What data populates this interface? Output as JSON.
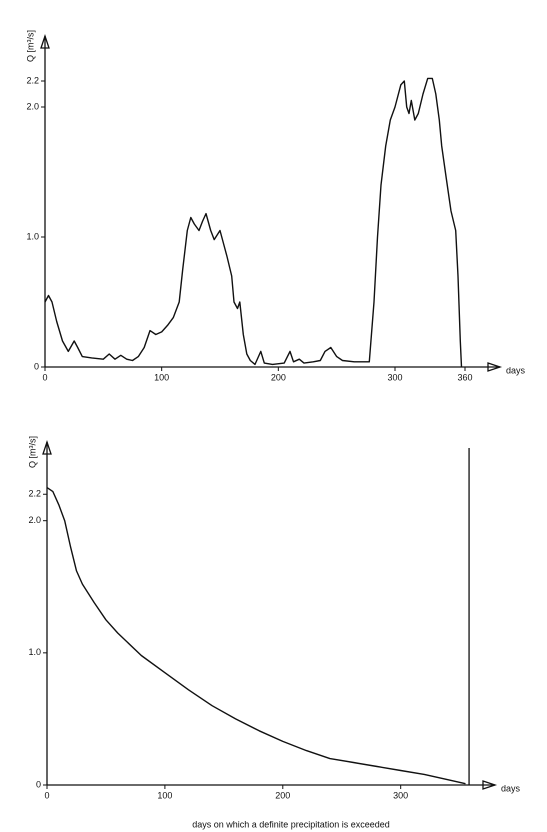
{
  "chart_data": [
    {
      "type": "line",
      "y_label": "Q [m³/s]",
      "x_label": "days",
      "xlim": [
        0,
        390
      ],
      "ylim": [
        0,
        2.5
      ],
      "xticks": [
        0,
        100,
        200,
        300,
        360
      ],
      "yticks": [
        0,
        {
          "value": 1,
          "label": "1.0"
        },
        {
          "value": 2,
          "label": "2.0"
        },
        2.2
      ],
      "series": [
        {
          "color": "#111111",
          "x": [
            0,
            3,
            6,
            10,
            15,
            20,
            25,
            28,
            32,
            40,
            50,
            55,
            60,
            65,
            70,
            75,
            80,
            85,
            90,
            95,
            100,
            105,
            110,
            115,
            118,
            122,
            125,
            128,
            132,
            135,
            138,
            142,
            145,
            150,
            153,
            156,
            160,
            162,
            165,
            167,
            170,
            173,
            176,
            180,
            185,
            188,
            195,
            205,
            210,
            213,
            218,
            222,
            230,
            236,
            240,
            245,
            250,
            255,
            265,
            278,
            282,
            285,
            288,
            292,
            296,
            300,
            305,
            308,
            310,
            312,
            314,
            317,
            320,
            324,
            328,
            332,
            335,
            338,
            340,
            344,
            348,
            352,
            354,
            356,
            357
          ],
          "values": [
            0.5,
            0.55,
            0.5,
            0.35,
            0.2,
            0.12,
            0.2,
            0.15,
            0.08,
            0.07,
            0.06,
            0.1,
            0.06,
            0.09,
            0.06,
            0.05,
            0.08,
            0.15,
            0.28,
            0.25,
            0.27,
            0.32,
            0.38,
            0.5,
            0.75,
            1.05,
            1.15,
            1.1,
            1.05,
            1.12,
            1.18,
            1.05,
            0.98,
            1.05,
            0.95,
            0.85,
            0.7,
            0.5,
            0.45,
            0.5,
            0.25,
            0.1,
            0.05,
            0.02,
            0.12,
            0.03,
            0.02,
            0.03,
            0.12,
            0.04,
            0.06,
            0.03,
            0.04,
            0.05,
            0.12,
            0.15,
            0.08,
            0.05,
            0.04,
            0.04,
            0.5,
            1.0,
            1.4,
            1.7,
            1.9,
            2.0,
            2.17,
            2.2,
            2.0,
            1.95,
            2.05,
            1.9,
            1.95,
            2.1,
            2.22,
            2.22,
            2.1,
            1.9,
            1.7,
            1.45,
            1.2,
            1.05,
            0.7,
            0.2,
            0
          ]
        }
      ]
    },
    {
      "type": "line",
      "y_label": "Q [m³/s]",
      "x_label": "days",
      "caption": "days on which a definite precipitation is exceeded",
      "xlim": [
        0,
        380
      ],
      "ylim": [
        0,
        2.55
      ],
      "xticks": [
        0,
        100,
        200,
        300
      ],
      "yticks": [
        0,
        {
          "value": 1,
          "label": "1.0"
        },
        {
          "value": 2,
          "label": "2.0"
        },
        2.2
      ],
      "vlines": [
        358
      ],
      "series": [
        {
          "color": "#111111",
          "x": [
            0,
            5,
            10,
            15,
            20,
            25,
            30,
            40,
            50,
            60,
            80,
            100,
            120,
            140,
            160,
            180,
            200,
            220,
            240,
            260,
            280,
            300,
            320,
            340,
            355
          ],
          "values": [
            2.25,
            2.22,
            2.12,
            2.0,
            1.8,
            1.62,
            1.52,
            1.38,
            1.25,
            1.15,
            0.98,
            0.85,
            0.72,
            0.6,
            0.5,
            0.41,
            0.33,
            0.26,
            0.2,
            0.17,
            0.14,
            0.11,
            0.08,
            0.04,
            0.01
          ]
        }
      ]
    }
  ]
}
